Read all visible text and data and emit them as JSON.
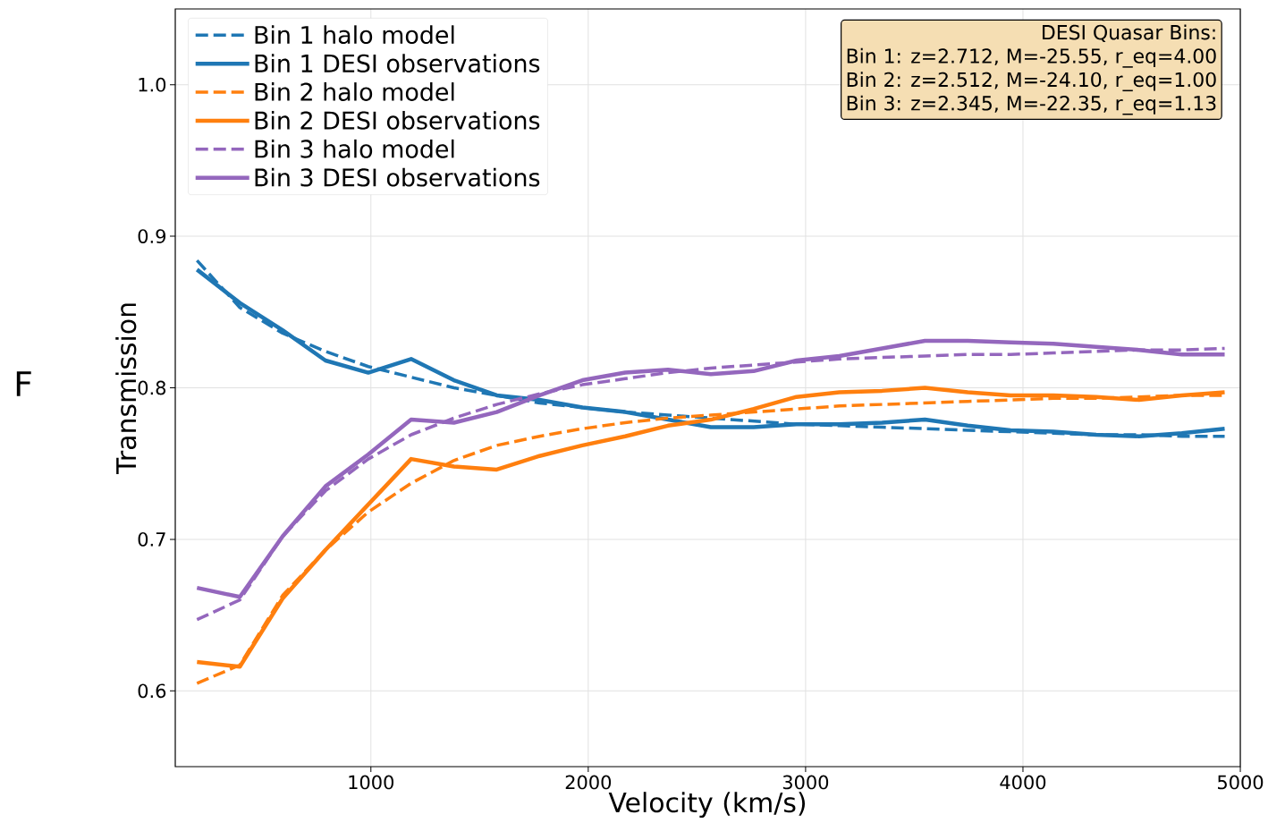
{
  "chart_data": {
    "type": "line",
    "xlabel": "Velocity (km/s)",
    "ylabel": "Transmission",
    "x": [
      200,
      397,
      594,
      791,
      988,
      1185,
      1382,
      1579,
      1776,
      1973,
      2170,
      2367,
      2564,
      2761,
      2958,
      3155,
      3352,
      3549,
      3746,
      3943,
      4140,
      4337,
      4534,
      4731,
      4928
    ],
    "series": [
      {
        "name": "Bin 1 halo model",
        "color": "#1f77b4",
        "line_style": "dashed",
        "values": [
          0.884,
          0.853,
          0.836,
          0.824,
          0.814,
          0.807,
          0.8,
          0.795,
          0.79,
          0.787,
          0.784,
          0.782,
          0.78,
          0.778,
          0.776,
          0.775,
          0.774,
          0.773,
          0.772,
          0.771,
          0.77,
          0.769,
          0.769,
          0.768,
          0.768
        ]
      },
      {
        "name": "Bin 1 DESI observations",
        "color": "#1f77b4",
        "line_style": "solid",
        "values": [
          0.878,
          0.856,
          0.838,
          0.818,
          0.81,
          0.819,
          0.805,
          0.795,
          0.792,
          0.787,
          0.784,
          0.779,
          0.774,
          0.774,
          0.776,
          0.776,
          0.777,
          0.779,
          0.775,
          0.772,
          0.771,
          0.769,
          0.768,
          0.77,
          0.773
        ]
      },
      {
        "name": "Bin 2 halo model",
        "color": "#ff7f0e",
        "line_style": "dashed",
        "values": [
          0.605,
          0.617,
          0.663,
          0.693,
          0.718,
          0.737,
          0.752,
          0.762,
          0.768,
          0.773,
          0.777,
          0.78,
          0.782,
          0.784,
          0.786,
          0.788,
          0.789,
          0.79,
          0.791,
          0.792,
          0.793,
          0.793,
          0.794,
          0.795,
          0.795
        ]
      },
      {
        "name": "Bin 2 DESI observations",
        "color": "#ff7f0e",
        "line_style": "solid",
        "values": [
          0.619,
          0.616,
          0.661,
          0.693,
          0.723,
          0.753,
          0.748,
          0.746,
          0.755,
          0.762,
          0.768,
          0.775,
          0.779,
          0.786,
          0.794,
          0.797,
          0.798,
          0.8,
          0.797,
          0.795,
          0.795,
          0.794,
          0.792,
          0.795,
          0.797
        ]
      },
      {
        "name": "Bin 3 halo model",
        "color": "#9467bd",
        "line_style": "dashed",
        "values": [
          0.647,
          0.66,
          0.702,
          0.732,
          0.753,
          0.769,
          0.78,
          0.789,
          0.796,
          0.802,
          0.806,
          0.81,
          0.813,
          0.815,
          0.817,
          0.819,
          0.82,
          0.821,
          0.822,
          0.822,
          0.823,
          0.824,
          0.825,
          0.825,
          0.826
        ]
      },
      {
        "name": "Bin 3 DESI observations",
        "color": "#9467bd",
        "line_style": "solid",
        "values": [
          0.668,
          0.662,
          0.702,
          0.735,
          0.756,
          0.779,
          0.777,
          0.784,
          0.795,
          0.805,
          0.81,
          0.812,
          0.809,
          0.811,
          0.818,
          0.821,
          0.826,
          0.831,
          0.831,
          0.83,
          0.829,
          0.827,
          0.825,
          0.822,
          0.822
        ]
      }
    ],
    "xlim": [
      100,
      5000
    ],
    "ylim": [
      0.55,
      1.05
    ],
    "xticks": [
      1000,
      2000,
      3000,
      4000,
      5000
    ],
    "yticks": [
      0.6,
      0.7,
      0.8,
      0.9,
      {
        "value": 1.0,
        "label": "1.0"
      }
    ],
    "grid": true,
    "legend": "top left",
    "annotations": [
      "DESI Quasar Bins:",
      "Bin 1: z=2.712, M=-25.55, r_eq=4.00",
      "Bin 2: z=2.512, M=-24.10, r_eq=1.00",
      "Bin 3: z=2.345, M=-22.35, r_eq=1.13",
      "F"
    ]
  }
}
